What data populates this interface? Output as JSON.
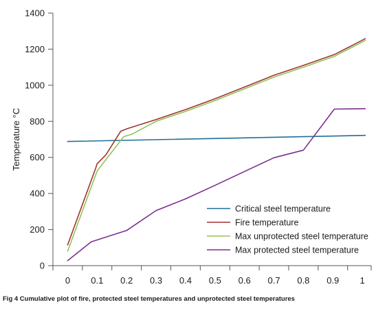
{
  "caption": "Fig 4 Cumulative plot of fire, protected steel temperatures and unprotected steel temperatures",
  "chart_data": {
    "type": "line",
    "title": "",
    "xlabel": "",
    "ylabel": "Temperature °C",
    "xlim": [
      -0.05,
      1.03
    ],
    "ylim": [
      0,
      1400
    ],
    "xticks": [
      0,
      0.1,
      0.2,
      0.3,
      0.4,
      0.5,
      0.6,
      0.7,
      0.8,
      0.9,
      1
    ],
    "xtick_labels": [
      "0",
      "0.1",
      "0.2",
      "0.3",
      "0.4",
      "0.5",
      "0.6",
      "0.7",
      "0.8",
      "0.9",
      "1"
    ],
    "yticks": [
      0,
      200,
      400,
      600,
      800,
      1000,
      1200,
      1400
    ],
    "ytick_labels": [
      "0",
      "200",
      "400",
      "600",
      "800",
      "1000",
      "1200",
      "1400"
    ],
    "grid": false,
    "legend_position": "lower-right",
    "series": [
      {
        "name": "Critical steel temperature",
        "color": "#1f6e98",
        "x": [
          0,
          1.01
        ],
        "y": [
          688,
          722
        ]
      },
      {
        "name": "Fire temperature",
        "color": "#a03232",
        "x": [
          0,
          0.095,
          0.1,
          0.13,
          0.18,
          0.2,
          0.3,
          0.4,
          0.5,
          0.6,
          0.7,
          0.8,
          0.905,
          1.01
        ],
        "y": [
          115,
          540,
          565,
          615,
          745,
          758,
          810,
          865,
          925,
          990,
          1055,
          1110,
          1170,
          1258
        ]
      },
      {
        "name": "Max unprotected steel temperature",
        "color": "#92c255",
        "x": [
          0,
          0.1,
          0.19,
          0.22,
          0.3,
          0.4,
          0.5,
          0.6,
          0.7,
          0.8,
          0.905,
          1.01
        ],
        "y": [
          80,
          525,
          715,
          730,
          800,
          855,
          915,
          980,
          1045,
          1100,
          1160,
          1248
        ]
      },
      {
        "name": "Max protected steel temperature",
        "color": "#7a2f8e",
        "x": [
          0,
          0.08,
          0.2,
          0.3,
          0.4,
          0.5,
          0.6,
          0.7,
          0.8,
          0.905,
          1.01
        ],
        "y": [
          28,
          132,
          195,
          305,
          370,
          445,
          522,
          598,
          640,
          868,
          870
        ]
      }
    ]
  }
}
